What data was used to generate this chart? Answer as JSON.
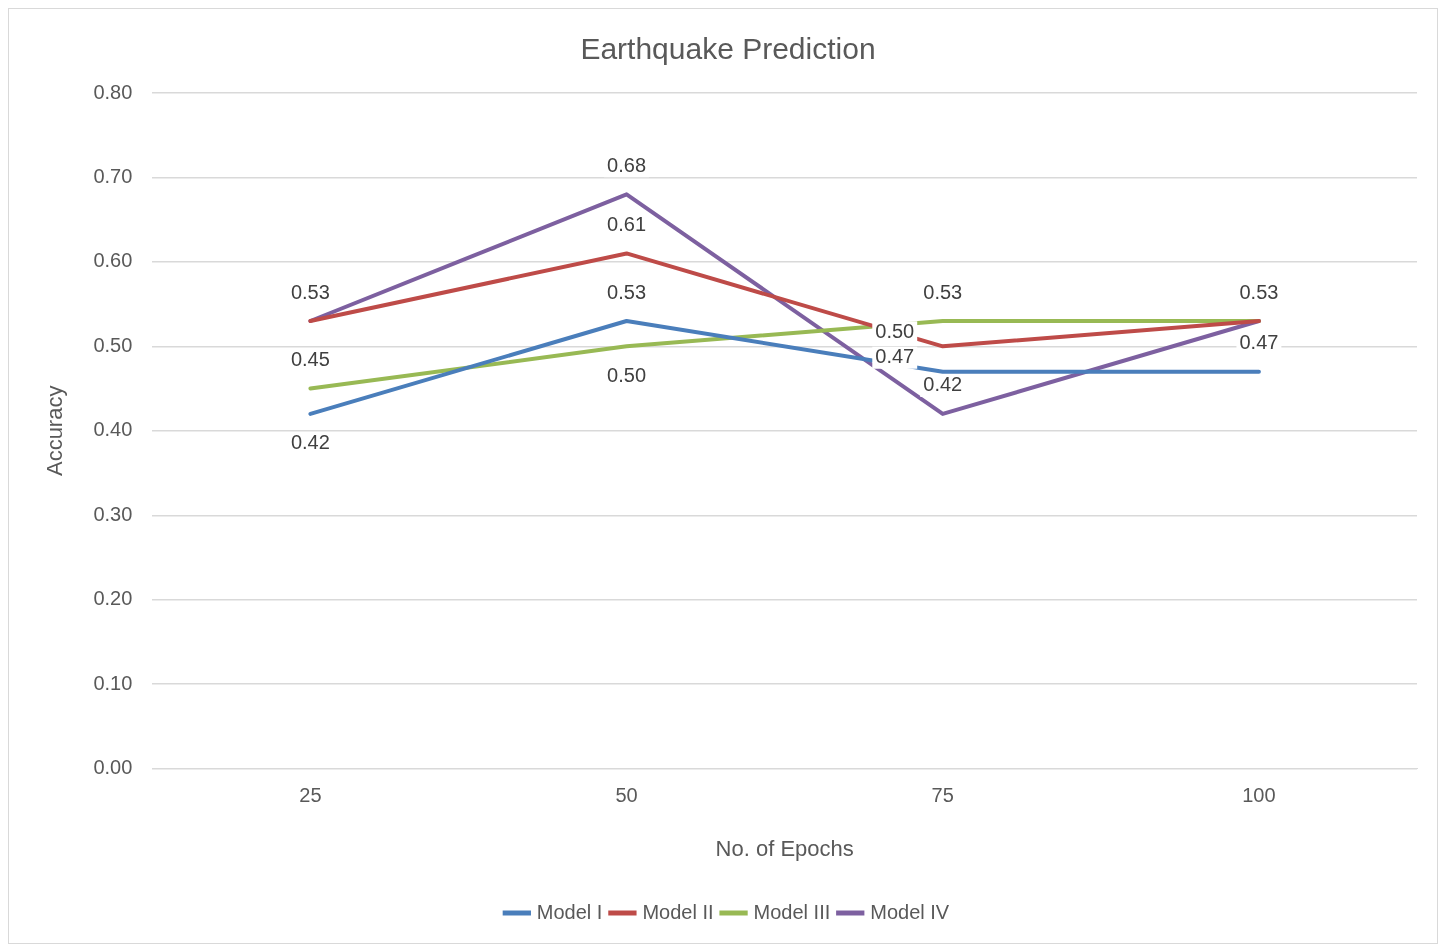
{
  "chart_data": {
    "type": "line",
    "title": "Earthquake Prediction",
    "xlabel": "No. of Epochs",
    "ylabel": "Accuracy",
    "categories": [
      "25",
      "50",
      "75",
      "100"
    ],
    "series": [
      {
        "name": "Model I",
        "color": "#4a7ebb",
        "values": [
          0.42,
          0.53,
          0.47,
          0.47
        ],
        "value_labels": [
          "0.42",
          "0.53",
          "0.47",
          "0.47"
        ]
      },
      {
        "name": "Model II",
        "color": "#be4b48",
        "values": [
          0.53,
          0.61,
          0.5,
          0.53
        ],
        "value_labels": [
          null,
          "0.61",
          "0.50",
          null
        ]
      },
      {
        "name": "Model III",
        "color": "#98b954",
        "values": [
          0.45,
          0.5,
          0.53,
          0.53
        ],
        "value_labels": [
          "0.45",
          "0.50",
          "0.53",
          null
        ]
      },
      {
        "name": "Model IV",
        "color": "#7d60a0",
        "values": [
          0.53,
          0.68,
          0.42,
          0.53
        ],
        "value_labels": [
          "0.53",
          "0.68",
          "0.42",
          "0.53"
        ]
      }
    ],
    "ylim": [
      0,
      0.8
    ],
    "yticks": [
      {
        "value": 0,
        "label": "0.00"
      },
      {
        "value": 0.1,
        "label": "0.10"
      },
      {
        "value": 0.2,
        "label": "0.20"
      },
      {
        "value": 0.3,
        "label": "0.30"
      },
      {
        "value": 0.4,
        "label": "0.40"
      },
      {
        "value": 0.5,
        "label": "0.50"
      },
      {
        "value": 0.6,
        "label": "0.60"
      },
      {
        "value": 0.7,
        "label": "0.70"
      },
      {
        "value": 0.8,
        "label": "0.80"
      }
    ],
    "grid": "y",
    "legend": "bottom",
    "marker": "none",
    "line_style": "solid"
  }
}
